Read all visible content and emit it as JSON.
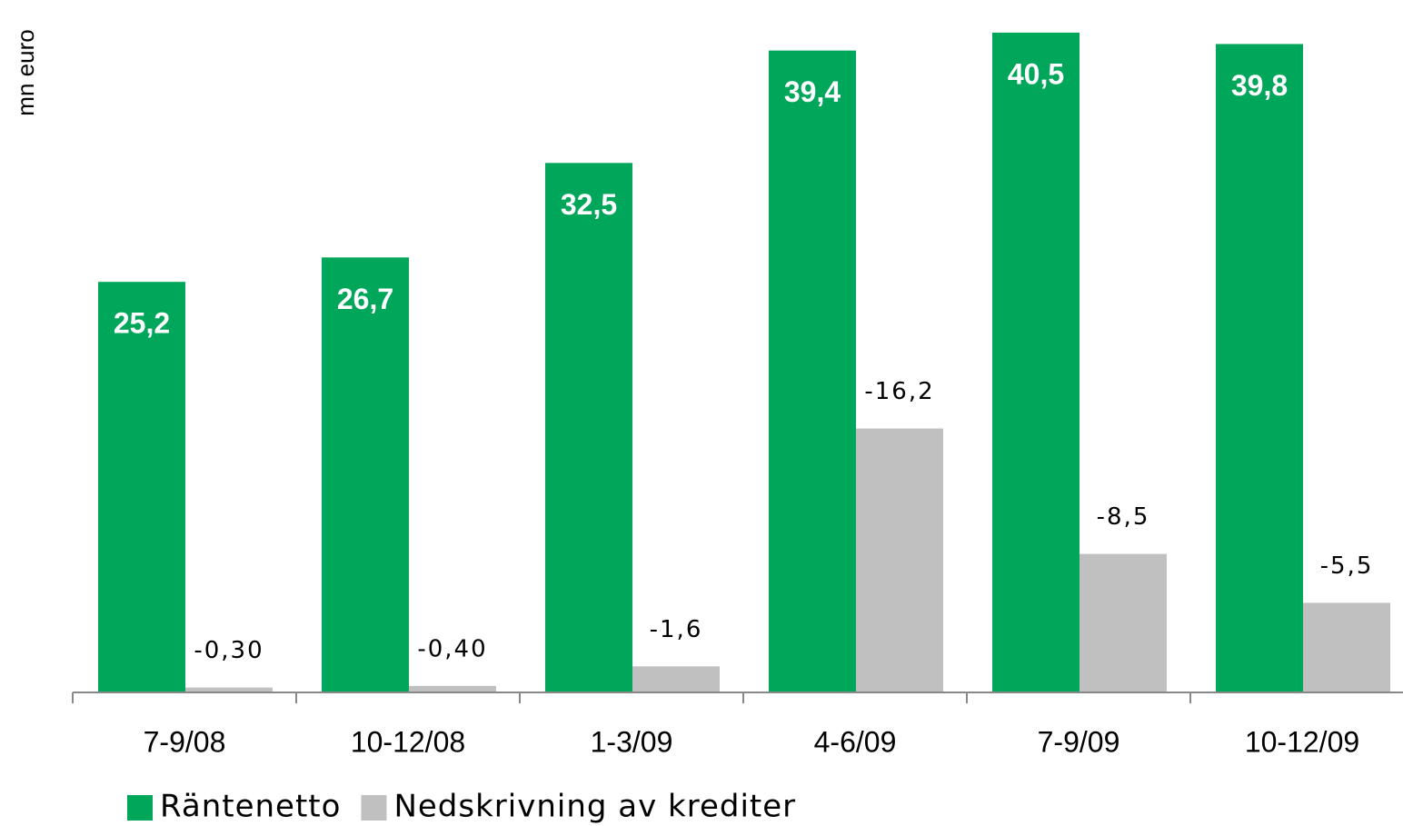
{
  "chart_data": {
    "type": "bar",
    "y_label": "mn euro",
    "categories": [
      "7-9/08",
      "10-12/08",
      "1-3/09",
      "4-6/09",
      "7-9/09",
      "10-12/09"
    ],
    "series": [
      {
        "name": "Räntenetto",
        "color": "#00a65a",
        "values": [
          25.2,
          26.7,
          32.5,
          39.4,
          40.5,
          39.8
        ],
        "value_labels": [
          "25,2",
          "26,7",
          "32,5",
          "39,4",
          "40,5",
          "39,8"
        ]
      },
      {
        "name": "Nedskrivning av krediter",
        "color": "#c0c0c0",
        "values": [
          -0.3,
          -0.4,
          -1.6,
          -16.2,
          -8.5,
          -5.5
        ],
        "value_labels": [
          "-0,30",
          "-0,40",
          "-1,6",
          "-16,2",
          "-8,5",
          "-5,5"
        ]
      }
    ],
    "ylim": [
      0,
      42
    ]
  }
}
